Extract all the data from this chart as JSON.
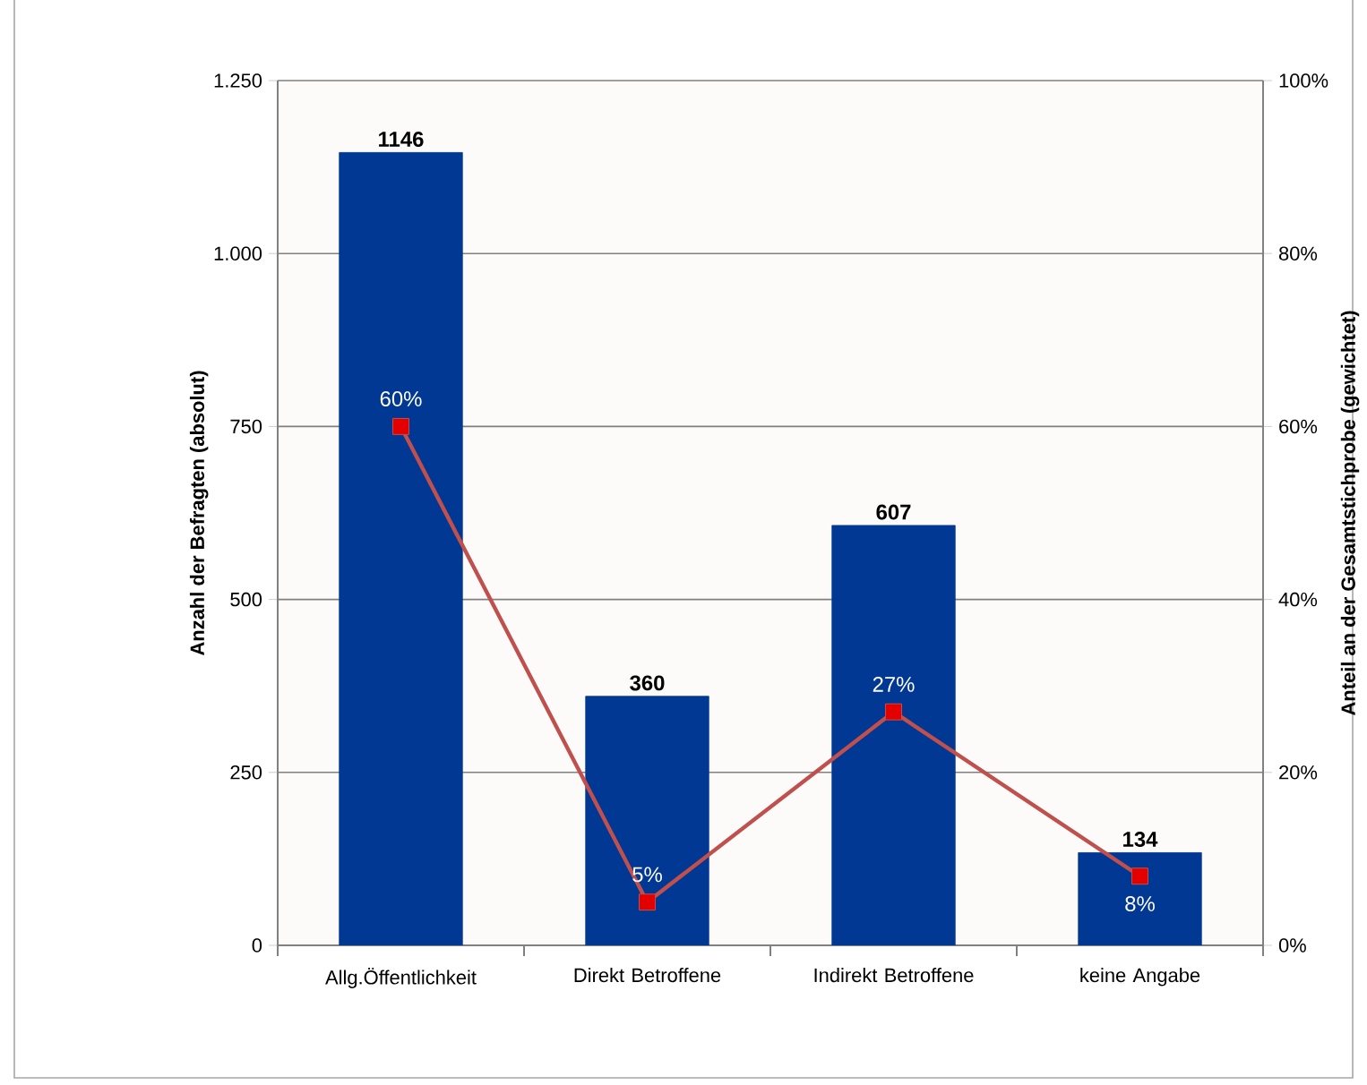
{
  "chart_data": {
    "type": "bar",
    "ylabel": "Anzahl der Befragten  (absolut)",
    "y2label": "Anteil an der Gesamtstichprobe  (gewichtet)",
    "categories": [
      "Allg.Öffentlichkeit",
      "Direkt Betroffene",
      "Indirekt Betroffene",
      "keine Angabe"
    ],
    "series": [
      {
        "color": "#003893",
        "values": [
          1146,
          360,
          607,
          134
        ],
        "value_labels": [
          "1146",
          "360",
          "607",
          "134"
        ]
      },
      {
        "type": "line",
        "axis": "y2",
        "color": "#c0504d",
        "marker": "square",
        "values": [
          60,
          5,
          27,
          8
        ],
        "value_labels": [
          "60%",
          "5%",
          "27%",
          "8%"
        ]
      }
    ],
    "ylim": [
      0,
      1250
    ],
    "yticks": [
      0,
      250,
      500,
      750,
      {
        "value": 1000,
        "label": "1.000"
      },
      {
        "value": 1250,
        "label": "1.250"
      }
    ],
    "y2lim": [
      0,
      100
    ],
    "y2ticks": [
      {
        "value": 0,
        "label": "0%"
      },
      {
        "value": 20,
        "label": "20%"
      },
      {
        "value": 40,
        "label": "40%"
      },
      {
        "value": 60,
        "label": "60%"
      },
      {
        "value": 80,
        "label": "80%"
      },
      {
        "value": 100,
        "label": "100%"
      }
    ],
    "grid": "y"
  }
}
